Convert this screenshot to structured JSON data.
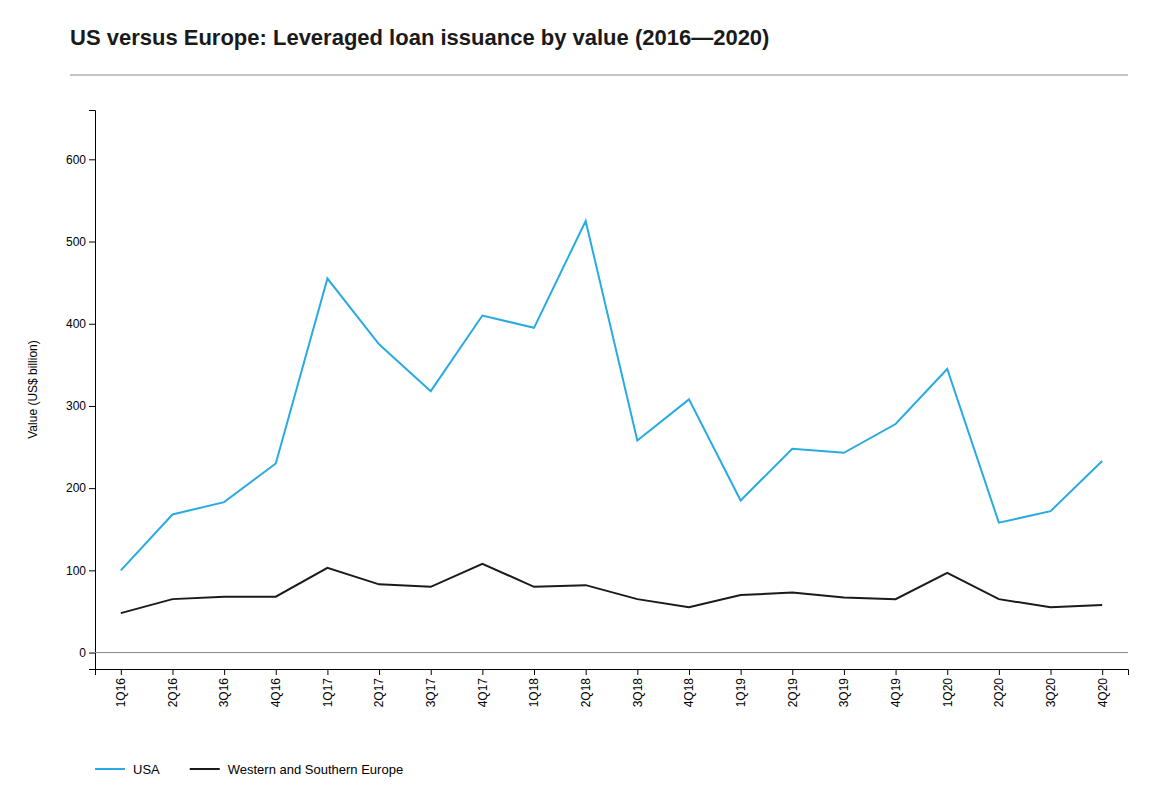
{
  "chart_data": {
    "type": "line",
    "title": "US versus Europe: Leveraged loan issuance by value (2016—2020)",
    "y_label": "Value (US$ billion)",
    "categories": [
      "1Q16",
      "2Q16",
      "3Q16",
      "4Q16",
      "1Q17",
      "2Q17",
      "3Q17",
      "4Q17",
      "1Q18",
      "2Q18",
      "3Q18",
      "4Q18",
      "1Q19",
      "2Q19",
      "3Q19",
      "4Q19",
      "1Q20",
      "2Q20",
      "3Q20",
      "4Q20"
    ],
    "series": [
      {
        "name": "USA",
        "color": "#29abe2",
        "values": [
          100,
          168,
          183,
          230,
          455,
          375,
          318,
          410,
          395,
          525,
          258,
          308,
          185,
          248,
          243,
          278,
          345,
          158,
          172,
          233
        ]
      },
      {
        "name": "Western and Southern Europe",
        "color": "#1a1a1a",
        "values": [
          48,
          65,
          68,
          68,
          103,
          83,
          80,
          108,
          80,
          82,
          65,
          55,
          70,
          73,
          67,
          65,
          97,
          65,
          55,
          58
        ]
      }
    ],
    "ylim": [
      -20,
      660
    ],
    "yticks": [
      0,
      100,
      200,
      300,
      400,
      500,
      600
    ],
    "grid": false,
    "legend": "bottom"
  }
}
